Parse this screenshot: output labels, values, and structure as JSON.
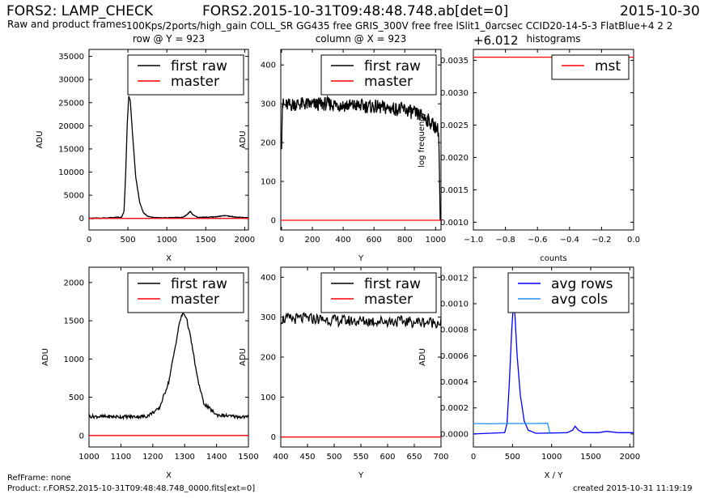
{
  "header": {
    "left_title": "FORS2: LAMP_CHECK",
    "center_title": "FORS2.2015-10-31T09:48:48.748.ab[det=0]",
    "right_date": "2015-10-30",
    "subtitle": "Raw and product frames",
    "config_line": "100Kps/2ports/high_gain COLL_SR GG435 free GRIS_300V free free lSlit1_0arcsec CCID20-14-5-3 FlatBlue+4 2 2"
  },
  "footer": {
    "ref_frame": "RefFrame: none",
    "product": "Product: r.FORS2.2015-10-31T09:48:48.748_0000.fits[ext=0]",
    "created": "created 2015-10-31 11:19:19"
  },
  "colors": {
    "first_raw": "#000000",
    "master": "#ff0000",
    "mst": "#ff0000",
    "avg_rows": "#0000ff",
    "avg_cols": "#1e90ff"
  },
  "chart_data": [
    {
      "id": "row",
      "type": "line",
      "title": "row @ Y = 923",
      "xlabel": "X",
      "ylabel": "ADU",
      "xlim": [
        0,
        2048
      ],
      "ylim": [
        -2500,
        36500
      ],
      "xticks": [
        0,
        500,
        1000,
        1500,
        2000
      ],
      "yticks": [
        0,
        5000,
        10000,
        15000,
        20000,
        25000,
        30000,
        35000
      ],
      "legend": "top-right",
      "series": [
        {
          "name": "first raw",
          "color_key": "first_raw",
          "x": [
            0,
            300,
            420,
            450,
            470,
            490,
            510,
            530,
            560,
            600,
            650,
            700,
            750,
            800,
            900,
            1200,
            1260,
            1300,
            1340,
            1400,
            1600,
            1750,
            1900,
            2048
          ],
          "y": [
            0,
            150,
            300,
            1500,
            9000,
            20000,
            26500,
            25500,
            18000,
            9000,
            3500,
            1200,
            500,
            250,
            120,
            200,
            800,
            1500,
            700,
            200,
            300,
            600,
            250,
            150
          ]
        },
        {
          "name": "master",
          "color_key": "master",
          "x": [
            0,
            2048
          ],
          "y": [
            0,
            0
          ]
        }
      ]
    },
    {
      "id": "column",
      "type": "line",
      "title": "column @ X = 923",
      "xlabel": "Y",
      "ylabel": "ADU",
      "xlim": [
        -5,
        1035
      ],
      "ylim": [
        -25,
        440
      ],
      "xticks": [
        0,
        200,
        400,
        600,
        800,
        1000
      ],
      "yticks": [
        0,
        100,
        200,
        300,
        400
      ],
      "legend": "top-right",
      "series": [
        {
          "name": "first raw",
          "color_key": "first_raw",
          "x": [
            0,
            5,
            20,
            100,
            200,
            300,
            400,
            500,
            600,
            700,
            800,
            900,
            950,
            1000,
            1020,
            1030
          ],
          "y": [
            200,
            300,
            295,
            300,
            298,
            300,
            296,
            295,
            292,
            288,
            285,
            270,
            258,
            240,
            230,
            0
          ]
        },
        {
          "name": "master",
          "color_key": "master",
          "x": [
            -5,
            1035
          ],
          "y": [
            0,
            0
          ]
        }
      ]
    },
    {
      "id": "histograms",
      "type": "line",
      "title": "histograms",
      "offset_text": "+6.012",
      "xlabel": "counts",
      "ylabel": "log frequency",
      "xlim": [
        -1.0,
        0.0
      ],
      "ylim": [
        0.00088,
        0.00367
      ],
      "xticks": [
        -1.0,
        -0.8,
        -0.6,
        -0.4,
        -0.2,
        0.0
      ],
      "xtick_labels": [
        "−1.0",
        "−0.8",
        "−0.6",
        "−0.4",
        "−0.2",
        "0.0"
      ],
      "yticks": [
        0.001,
        0.0015,
        0.002,
        0.0025,
        0.003,
        0.0035
      ],
      "ytick_labels": [
        "0.0010",
        "0.0015",
        "0.0020",
        "0.0025",
        "0.0030",
        "0.0035"
      ],
      "legend": "top-right",
      "series": [
        {
          "name": "mst",
          "color_key": "mst",
          "x": [
            -1.0,
            0.0
          ],
          "y": [
            0.00355,
            0.00355
          ]
        }
      ]
    },
    {
      "id": "row_zoom",
      "type": "line",
      "title": "",
      "xlabel": "X",
      "ylabel": "ADU",
      "xlim": [
        1000,
        1500
      ],
      "ylim": [
        -150,
        2200
      ],
      "xticks": [
        1000,
        1100,
        1200,
        1300,
        1400,
        1500
      ],
      "yticks": [
        0,
        500,
        1000,
        1500,
        2000
      ],
      "legend": "top-right",
      "series": [
        {
          "name": "first raw",
          "color_key": "first_raw",
          "x": [
            1000,
            1100,
            1180,
            1220,
            1250,
            1270,
            1285,
            1295,
            1305,
            1320,
            1340,
            1360,
            1400,
            1450,
            1500
          ],
          "y": [
            250,
            245,
            250,
            350,
            700,
            1150,
            1500,
            1600,
            1550,
            1250,
            750,
            420,
            270,
            250,
            240
          ]
        },
        {
          "name": "master",
          "color_key": "master",
          "x": [
            1000,
            1500
          ],
          "y": [
            0,
            0
          ]
        }
      ]
    },
    {
      "id": "column_zoom",
      "type": "line",
      "title": "",
      "xlabel": "Y",
      "ylabel": "ADU",
      "xlim": [
        400,
        700
      ],
      "ylim": [
        -25,
        425
      ],
      "xticks": [
        400,
        450,
        500,
        550,
        600,
        650,
        700
      ],
      "yticks": [
        0,
        100,
        200,
        300,
        400
      ],
      "legend": "top-right",
      "series": [
        {
          "name": "first raw",
          "color_key": "first_raw",
          "x": [
            400,
            450,
            500,
            550,
            600,
            650,
            700
          ],
          "y": [
            295,
            297,
            292,
            290,
            290,
            288,
            287
          ]
        },
        {
          "name": "master",
          "color_key": "master",
          "x": [
            400,
            700
          ],
          "y": [
            0,
            0
          ]
        }
      ]
    },
    {
      "id": "averages",
      "type": "line",
      "title": "",
      "xlabel": "X / Y",
      "ylabel": "ADU",
      "xlim": [
        0,
        2048
      ],
      "ylim": [
        -0.0001,
        0.00128
      ],
      "xticks": [
        0,
        500,
        1000,
        1500,
        2000
      ],
      "yticks": [
        0.0,
        0.0002,
        0.0004,
        0.0006,
        0.0008,
        0.001,
        0.0012
      ],
      "ytick_labels": [
        "0.0000",
        "0.0002",
        "0.0004",
        "0.0006",
        "0.0008",
        "0.0010",
        "0.0012"
      ],
      "legend": "top-right",
      "series": [
        {
          "name": "avg rows",
          "color_key": "avg_rows",
          "x": [
            0,
            400,
            430,
            460,
            490,
            510,
            530,
            560,
            600,
            650,
            700,
            800,
            1200,
            1270,
            1300,
            1340,
            1400,
            1600,
            1700,
            1850,
            2048
          ],
          "y": [
            0.0,
            1e-05,
            8e-05,
            0.0004,
            0.0008,
            0.00098,
            0.00093,
            0.0006,
            0.0003,
            0.0001,
            3e-05,
            5e-06,
            1e-05,
            3e-05,
            6e-05,
            3e-05,
            1e-05,
            1e-05,
            2e-05,
            1e-05,
            1e-05
          ]
        },
        {
          "name": "avg cols",
          "color_key": "avg_cols",
          "x": [
            0,
            200,
            400,
            600,
            800,
            950,
            965,
            980
          ],
          "y": [
            8e-05,
            7.8e-05,
            8e-05,
            8e-05,
            8e-05,
            8.2e-05,
            4e-05,
            0.0
          ]
        }
      ]
    }
  ]
}
